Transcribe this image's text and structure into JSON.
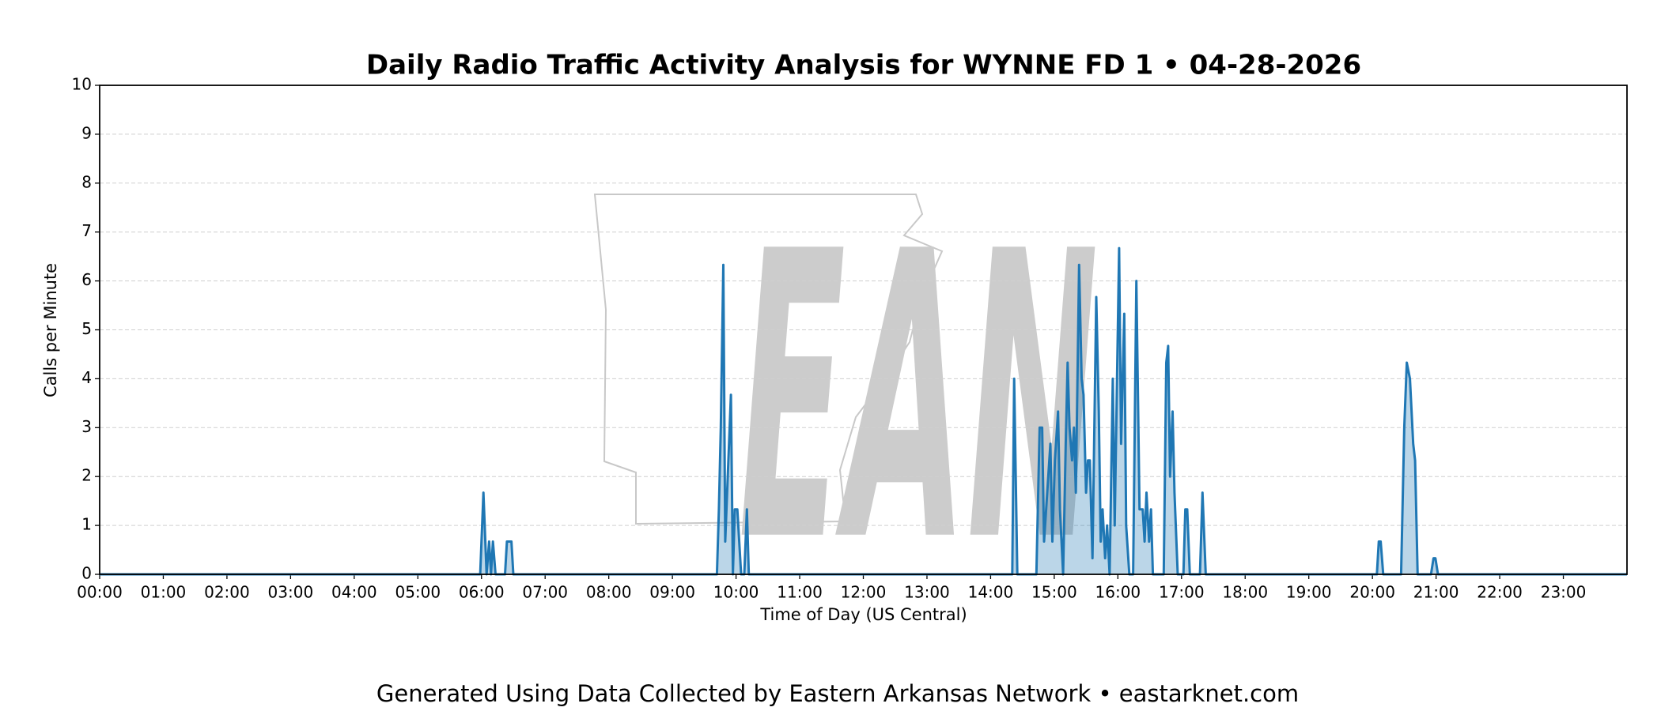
{
  "chart_data": {
    "type": "line",
    "title": "Daily Radio Traffic Activity Analysis for WYNNE FD 1 • 04-28-2026",
    "x_label": "Time of Day (US Central)",
    "y_label": "Calls per Minute",
    "footer": "Generated Using Data Collected by Eastern Arkansas Network • eastarknet.com",
    "watermark": "EAN",
    "xlim": [
      0,
      24
    ],
    "ylim": [
      0,
      10
    ],
    "yticks": [
      0,
      1,
      2,
      3,
      4,
      5,
      6,
      7,
      8,
      9,
      10
    ],
    "xticks": [
      {
        "value": 0,
        "label": "00:00"
      },
      {
        "value": 1,
        "label": "01:00"
      },
      {
        "value": 2,
        "label": "02:00"
      },
      {
        "value": 3,
        "label": "03:00"
      },
      {
        "value": 4,
        "label": "04:00"
      },
      {
        "value": 5,
        "label": "05:00"
      },
      {
        "value": 6,
        "label": "06:00"
      },
      {
        "value": 7,
        "label": "07:00"
      },
      {
        "value": 8,
        "label": "08:00"
      },
      {
        "value": 9,
        "label": "09:00"
      },
      {
        "value": 10,
        "label": "10:00"
      },
      {
        "value": 11,
        "label": "11:00"
      },
      {
        "value": 12,
        "label": "12:00"
      },
      {
        "value": 13,
        "label": "13:00"
      },
      {
        "value": 14,
        "label": "14:00"
      },
      {
        "value": 15,
        "label": "15:00"
      },
      {
        "value": 16,
        "label": "16:00"
      },
      {
        "value": 17,
        "label": "17:00"
      },
      {
        "value": 18,
        "label": "18:00"
      },
      {
        "value": 19,
        "label": "19:00"
      },
      {
        "value": 20,
        "label": "20:00"
      },
      {
        "value": 21,
        "label": "21:00"
      },
      {
        "value": 22,
        "label": "22:00"
      },
      {
        "value": 23,
        "label": "23:00"
      }
    ],
    "grid": true,
    "fill": true,
    "series": [
      {
        "color": "#1f77b4",
        "x": [
          0,
          5.98,
          6.03,
          6.08,
          6.12,
          6.15,
          6.18,
          6.22,
          6.37,
          6.4,
          6.47,
          6.5,
          9.7,
          9.73,
          9.76,
          9.8,
          9.83,
          9.87,
          9.92,
          9.95,
          9.98,
          10.02,
          10.05,
          10.08,
          10.13,
          10.17,
          10.2,
          14.34,
          14.37,
          14.42,
          14.72,
          14.77,
          14.81,
          14.84,
          14.89,
          14.94,
          14.97,
          15.01,
          15.06,
          15.09,
          15.14,
          15.18,
          15.21,
          15.24,
          15.28,
          15.31,
          15.34,
          15.39,
          15.43,
          15.46,
          15.5,
          15.53,
          15.56,
          15.6,
          15.66,
          15.7,
          15.73,
          15.76,
          15.8,
          15.83,
          15.87,
          15.92,
          15.95,
          16.02,
          16.05,
          16.1,
          16.13,
          16.18,
          16.24,
          16.29,
          16.34,
          16.39,
          16.42,
          16.45,
          16.49,
          16.52,
          16.55,
          16.72,
          16.76,
          16.79,
          16.82,
          16.86,
          16.89,
          16.94,
          17.03,
          17.06,
          17.09,
          17.13,
          17.29,
          17.33,
          17.38,
          20.07,
          20.1,
          20.13,
          20.17,
          20.45,
          20.5,
          20.54,
          20.59,
          20.64,
          20.67,
          20.71,
          20.92,
          20.96,
          20.99,
          21.03,
          24
        ],
        "values": [
          0,
          0,
          1.67,
          0,
          0.67,
          0,
          0.67,
          0,
          0,
          0.67,
          0.67,
          0,
          0,
          1.33,
          3,
          6.33,
          0.67,
          2,
          3.67,
          0,
          1.33,
          1.33,
          0.67,
          0,
          0,
          1.33,
          0,
          0,
          4,
          0,
          0,
          3,
          3,
          0.67,
          1.67,
          2.67,
          0.67,
          2.33,
          3.33,
          1.33,
          0,
          2.67,
          4.33,
          3,
          2.33,
          3,
          1.67,
          6.33,
          4,
          3.67,
          1.67,
          2.33,
          2.33,
          0.33,
          5.67,
          3.33,
          0.67,
          1.33,
          0.33,
          1,
          0,
          4,
          1,
          6.67,
          2.67,
          5.33,
          1,
          0,
          0,
          6,
          1.33,
          1.33,
          0.67,
          1.67,
          0.67,
          1.33,
          0,
          0,
          4.33,
          4.67,
          2,
          3.33,
          1.67,
          0,
          0,
          1.33,
          1.33,
          0,
          0,
          1.67,
          0,
          0,
          0.67,
          0.67,
          0,
          0,
          3,
          4.33,
          4,
          2.67,
          2.33,
          0,
          0,
          0.33,
          0.33,
          0,
          0
        ]
      }
    ]
  }
}
